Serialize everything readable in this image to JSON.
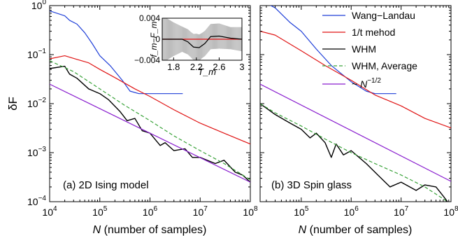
{
  "colors": {
    "wang_landau": "#1f3fd8",
    "one_over_t": "#e01515",
    "whm": "#000000",
    "whm_average": "#3aa33a",
    "power_law": "#8a1fcf",
    "inset_band": "#bdbdbd",
    "inset_zero": "#e01515"
  },
  "xlabel_var": "N",
  "xlabel_rest": " (number of samples)",
  "ylabel": "δF",
  "legend": {
    "wang_landau": "Wang−Landau",
    "one_over_t": "1/t mehod",
    "whm": "WHM",
    "whm_average": "WHM, Average",
    "power_law_prefix": "~ ",
    "power_law_var": "N",
    "power_law_exp": "−1/2"
  },
  "chart_data": [
    {
      "type": "line",
      "panel": "(a) 2D Ising model",
      "xscale": "log",
      "yscale": "log",
      "xlim": [
        10000,
        100000000
      ],
      "ylim": [
        0.0001,
        1
      ],
      "x_ticks": [
        "10^4",
        "10^5",
        "10^6",
        "10^7",
        "10^8"
      ],
      "y_ticks": [
        "10^0",
        "10^-1",
        "10^-2",
        "10^-3",
        "10^-4"
      ],
      "series": [
        {
          "name": "Wang−Landau",
          "key": "wang_landau",
          "points": [
            [
              10000,
              0.78
            ],
            [
              20000,
              0.62
            ],
            [
              25000,
              0.5
            ],
            [
              35000,
              0.42
            ],
            [
              50000,
              0.28
            ],
            [
              70000,
              0.17
            ],
            [
              100000,
              0.095
            ],
            [
              160000,
              0.06
            ],
            [
              280000,
              0.03
            ],
            [
              400000,
              0.018
            ],
            [
              600000,
              0.016
            ],
            [
              1000000,
              0.016
            ],
            [
              4500000,
              0.016
            ]
          ]
        },
        {
          "name": "1/t mehod",
          "key": "one_over_t",
          "points": [
            [
              10000,
              0.082
            ],
            [
              20000,
              0.095
            ],
            [
              35000,
              0.08
            ],
            [
              60000,
              0.068
            ],
            [
              100000,
              0.05
            ],
            [
              200000,
              0.034
            ],
            [
              500000,
              0.02
            ],
            [
              1000000,
              0.014
            ],
            [
              3000000,
              0.0075
            ],
            [
              10000000,
              0.004
            ],
            [
              30000000,
              0.0025
            ],
            [
              100000000,
              0.0015
            ]
          ]
        },
        {
          "name": "WHM",
          "key": "whm",
          "points": [
            [
              10000,
              0.052
            ],
            [
              20000,
              0.058
            ],
            [
              25000,
              0.04
            ],
            [
              35000,
              0.033
            ],
            [
              60000,
              0.02
            ],
            [
              100000,
              0.016
            ],
            [
              150000,
              0.012
            ],
            [
              250000,
              0.007
            ],
            [
              350000,
              0.0045
            ],
            [
              500000,
              0.005
            ],
            [
              700000,
              0.0028
            ],
            [
              1000000,
              0.0025
            ],
            [
              1600000,
              0.0014
            ],
            [
              2000000,
              0.0016
            ],
            [
              3000000,
              0.0011
            ],
            [
              5000000,
              0.0012
            ],
            [
              7000000,
              0.0008
            ],
            [
              10000000,
              0.0008
            ],
            [
              20000000,
              0.0006
            ],
            [
              30000000,
              0.0007
            ],
            [
              50000000,
              0.0004
            ],
            [
              70000000,
              0.00035
            ],
            [
              100000000,
              0.00025
            ]
          ]
        },
        {
          "name": "WHM, Average",
          "key": "whm_average",
          "points": [
            [
              10000,
              0.075
            ],
            [
              30000,
              0.045
            ],
            [
              100000,
              0.02
            ],
            [
              300000,
              0.0095
            ],
            [
              1000000,
              0.0045
            ],
            [
              3000000,
              0.0022
            ],
            [
              10000000,
              0.0011
            ],
            [
              30000000,
              0.0006
            ],
            [
              100000000,
              0.00028
            ]
          ]
        },
        {
          "name": "~ N^−1/2",
          "key": "power_law",
          "points": [
            [
              10000,
              0.025
            ],
            [
              100000000,
              0.00025
            ]
          ]
        }
      ],
      "inset": {
        "xlabel": "T_m",
        "ylabel": "f_m−F_m",
        "xlim": [
          1.6,
          3.0
        ],
        "ylim": [
          -0.004,
          0.004
        ],
        "x_ticks": [
          "1.8",
          "2.2",
          "2.6",
          "3"
        ],
        "y_ticks": [
          "0.004",
          "0",
          "−0.004"
        ],
        "mean": [
          [
            1.6,
            0.0
          ],
          [
            1.8,
            0.0
          ],
          [
            1.95,
            0.0
          ],
          [
            2.05,
            -0.0005
          ],
          [
            2.15,
            -0.0015
          ],
          [
            2.25,
            -0.0016
          ],
          [
            2.35,
            -0.0008
          ],
          [
            2.45,
            0.0005
          ],
          [
            2.6,
            0.0006
          ],
          [
            2.8,
            0.0002
          ],
          [
            3.0,
            0.0
          ]
        ],
        "band": [
          [
            1.6,
            0.0045
          ],
          [
            1.8,
            0.0032
          ],
          [
            1.95,
            0.0024
          ],
          [
            2.1,
            0.0024
          ],
          [
            2.2,
            0.0026
          ],
          [
            2.3,
            0.0024
          ],
          [
            2.45,
            0.0024
          ],
          [
            2.6,
            0.0024
          ],
          [
            2.8,
            0.0021
          ],
          [
            3.0,
            0.0023
          ]
        ]
      }
    },
    {
      "type": "line",
      "panel": "(b) 3D Spin glass",
      "xscale": "log",
      "yscale": "log",
      "xlim": [
        15000,
        100000000
      ],
      "ylim": [
        0.0001,
        1
      ],
      "x_ticks": [
        "10^5",
        "10^6",
        "10^7",
        "10^8"
      ],
      "series": [
        {
          "name": "Wang−Landau",
          "key": "wang_landau",
          "points": [
            [
              15000,
              1.3
            ],
            [
              30000,
              0.9
            ],
            [
              60000,
              0.45
            ],
            [
              100000,
              0.3
            ],
            [
              200000,
              0.13
            ],
            [
              400000,
              0.06
            ],
            [
              1000000,
              0.028
            ],
            [
              2000000,
              0.018
            ],
            [
              3000000,
              0.016
            ],
            [
              8000000,
              0.016
            ]
          ]
        },
        {
          "name": "1/t mehod",
          "key": "one_over_t",
          "points": [
            [
              15000,
              0.3
            ],
            [
              30000,
              0.25
            ],
            [
              100000,
              0.12
            ],
            [
              300000,
              0.06
            ],
            [
              1000000,
              0.03
            ],
            [
              3000000,
              0.015
            ],
            [
              10000000,
              0.009
            ],
            [
              30000000,
              0.005
            ],
            [
              100000000,
              0.0032
            ]
          ]
        },
        {
          "name": "WHM",
          "key": "whm",
          "points": [
            [
              15000,
              0.01
            ],
            [
              30000,
              0.006
            ],
            [
              60000,
              0.004
            ],
            [
              100000,
              0.003
            ],
            [
              150000,
              0.002
            ],
            [
              200000,
              0.0025
            ],
            [
              300000,
              0.0016
            ],
            [
              400000,
              0.0008
            ],
            [
              500000,
              0.0015
            ],
            [
              700000,
              0.0009
            ],
            [
              1000000,
              0.0011
            ],
            [
              2000000,
              0.0006
            ],
            [
              3000000,
              0.0004
            ],
            [
              4000000,
              0.0003
            ],
            [
              6000000,
              0.0002
            ],
            [
              10000000,
              0.00025
            ],
            [
              20000000,
              0.00017
            ],
            [
              30000000,
              0.00022
            ],
            [
              50000000,
              0.0002
            ],
            [
              70000000,
              0.00013
            ],
            [
              100000000,
              8e-05
            ]
          ]
        },
        {
          "name": "WHM, Average",
          "key": "whm_average",
          "points": [
            [
              15000,
              0.01
            ],
            [
              30000,
              0.0065
            ],
            [
              100000,
              0.0035
            ],
            [
              300000,
              0.0019
            ],
            [
              1000000,
              0.001
            ],
            [
              3000000,
              0.0006
            ],
            [
              10000000,
              0.00035
            ],
            [
              30000000,
              0.0002
            ],
            [
              100000000,
              9e-05
            ]
          ]
        },
        {
          "name": "~ N^−1/2",
          "key": "power_law",
          "points": [
            [
              15000,
              0.025
            ],
            [
              100000000,
              0.00026
            ]
          ]
        }
      ]
    }
  ]
}
